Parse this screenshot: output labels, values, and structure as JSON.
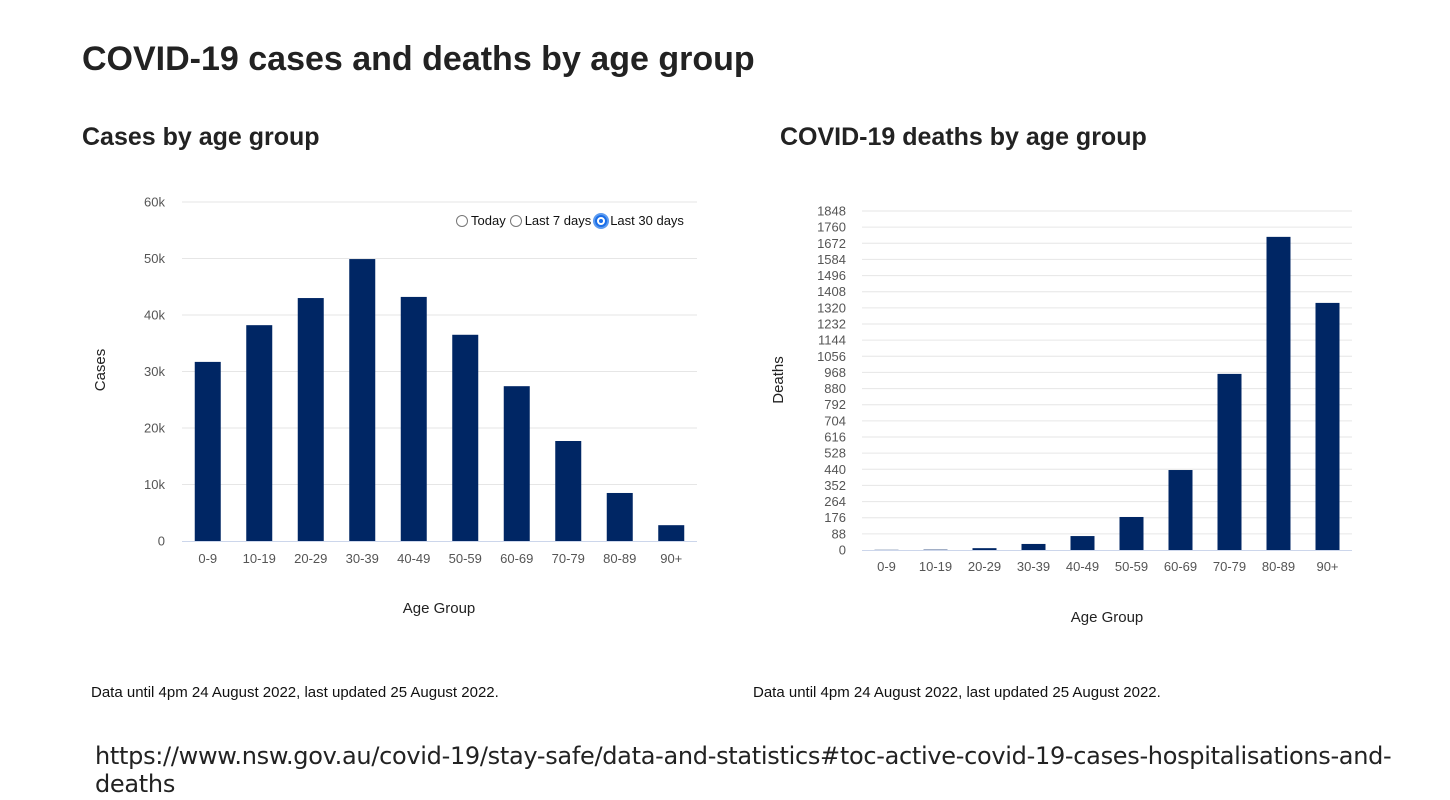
{
  "title": "COVID-19 cases and deaths by age group",
  "left": {
    "heading": "Cases by age group",
    "note": "Data until 4pm 24 August 2022, last updated 25 August 2022.",
    "radios": [
      {
        "label": "Today",
        "selected": false
      },
      {
        "label": "Last 7 days",
        "selected": false
      },
      {
        "label": "Last 30 days",
        "selected": true
      }
    ]
  },
  "right": {
    "heading": "COVID-19 deaths by age group",
    "note": "Data until 4pm 24 August 2022, last updated 25 August 2022."
  },
  "url": "https://www.nsw.gov.au/covid-19/stay-safe/data-and-statistics#toc-active-covid-19-cases-hospitalisations-and-deaths",
  "colors": {
    "bar": "#002664",
    "grid": "#e6e6e6",
    "axis": "#ccd6eb"
  },
  "chart_data": [
    {
      "type": "bar",
      "title": "Cases by age group",
      "xlabel": "Age Group",
      "ylabel": "Cases",
      "categories": [
        "0-9",
        "10-19",
        "20-29",
        "30-39",
        "40-49",
        "50-59",
        "60-69",
        "70-79",
        "80-89",
        "90+"
      ],
      "values": [
        31700,
        38200,
        43000,
        49900,
        43200,
        36500,
        27400,
        17700,
        8500,
        2800
      ],
      "ylim": [
        0,
        60000
      ],
      "yticks": [
        0,
        10000,
        20000,
        30000,
        40000,
        50000,
        60000
      ],
      "ytick_labels": [
        "0",
        "10k",
        "20k",
        "30k",
        "40k",
        "50k",
        "60k"
      ],
      "grid": true
    },
    {
      "type": "bar",
      "title": "COVID-19 deaths by age group",
      "xlabel": "Age Group",
      "ylabel": "Deaths",
      "categories": [
        "0-9",
        "10-19",
        "20-29",
        "30-39",
        "40-49",
        "50-59",
        "60-69",
        "70-79",
        "80-89",
        "90+"
      ],
      "values": [
        1,
        2,
        10,
        33,
        76,
        180,
        436,
        960,
        1707,
        1347
      ],
      "ylim": [
        0,
        1848
      ],
      "yticks": [
        0,
        88,
        176,
        264,
        352,
        440,
        528,
        616,
        704,
        792,
        880,
        968,
        1056,
        1144,
        1232,
        1320,
        1408,
        1496,
        1584,
        1672,
        1760,
        1848
      ],
      "ytick_labels": [
        "0",
        "88",
        "176",
        "264",
        "352",
        "440",
        "528",
        "616",
        "704",
        "792",
        "880",
        "968",
        "1056",
        "1144",
        "1232",
        "1320",
        "1408",
        "1496",
        "1584",
        "1672",
        "1760",
        "1848"
      ],
      "grid": true
    }
  ]
}
